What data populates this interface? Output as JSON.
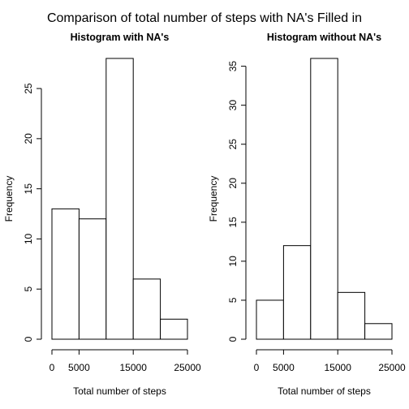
{
  "figure": {
    "title": "Comparison of total number of steps with NA's Filled in"
  },
  "chart_data": [
    {
      "type": "bar",
      "subtype": "histogram",
      "title": "Histogram with NA's",
      "xlabel": "Total number of steps",
      "ylabel": "Frequency",
      "bins": [
        [
          0,
          5000
        ],
        [
          5000,
          10000
        ],
        [
          10000,
          15000
        ],
        [
          15000,
          20000
        ],
        [
          20000,
          25000
        ]
      ],
      "values": [
        13,
        12,
        28,
        6,
        2
      ],
      "xlim": [
        0,
        25000
      ],
      "ylim": [
        0,
        28
      ],
      "x_ticks": [
        0,
        5000,
        15000,
        25000
      ],
      "x_tick_labels": [
        "0",
        "5000",
        "15000",
        "25000"
      ],
      "y_ticks": [
        0,
        5,
        10,
        15,
        20,
        25
      ],
      "y_tick_labels": [
        "0",
        "5",
        "10",
        "15",
        "20",
        "25"
      ],
      "grid": false
    },
    {
      "type": "bar",
      "subtype": "histogram",
      "title": "Histogram without NA's",
      "xlabel": "Total number of steps",
      "ylabel": "Frequency",
      "bins": [
        [
          0,
          5000
        ],
        [
          5000,
          10000
        ],
        [
          10000,
          15000
        ],
        [
          15000,
          20000
        ],
        [
          20000,
          25000
        ]
      ],
      "values": [
        5,
        12,
        36,
        6,
        2
      ],
      "xlim": [
        0,
        25000
      ],
      "ylim": [
        0,
        36
      ],
      "x_ticks": [
        0,
        5000,
        15000,
        25000
      ],
      "x_tick_labels": [
        "0",
        "5000",
        "15000",
        "25000"
      ],
      "y_ticks": [
        0,
        5,
        10,
        15,
        20,
        25,
        30,
        35
      ],
      "y_tick_labels": [
        "0",
        "5",
        "10",
        "15",
        "20",
        "25",
        "30",
        "35"
      ],
      "grid": false
    }
  ]
}
